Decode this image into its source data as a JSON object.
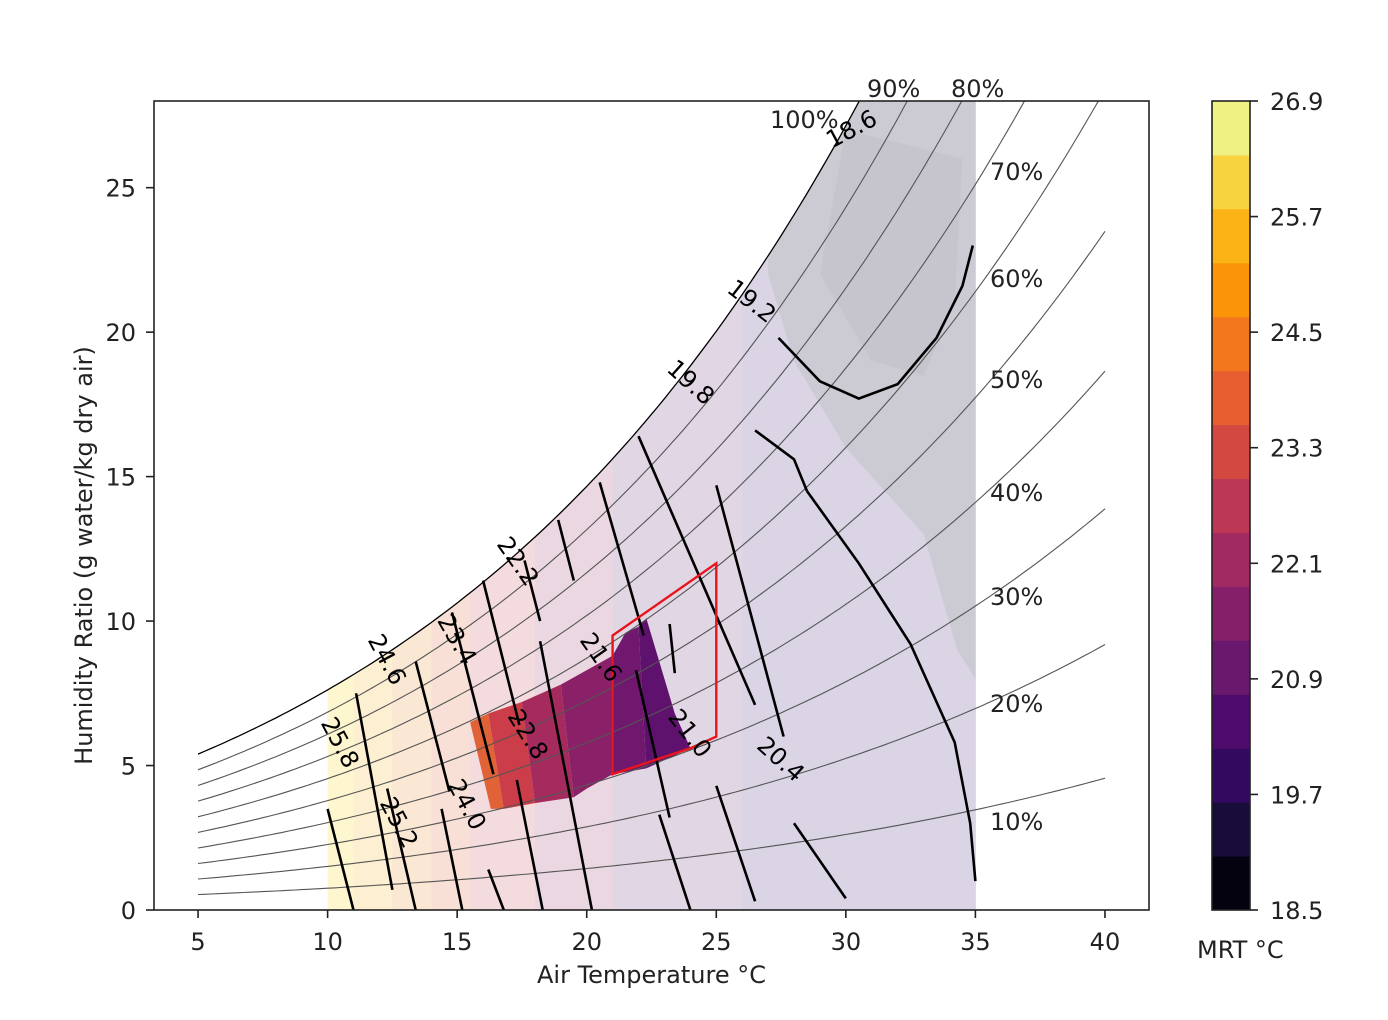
{
  "chart_data": {
    "type": "contour",
    "xlabel": "Air Temperature $^\\circ$C",
    "ylabel": "Humidity Ratio (g water/kg dry air)",
    "xlim": [
      3.3,
      41.7
    ],
    "ylim": [
      0,
      28
    ],
    "xticks": [
      5,
      10,
      15,
      20,
      25,
      30,
      35,
      40
    ],
    "yticks": [
      0,
      5,
      10,
      15,
      20,
      25
    ],
    "xlabel_text": "Air Temperature °C",
    "ylabel_text": "Humidity Ratio (g water/kg dry air)",
    "grid": false,
    "relative_humidity_curves": [
      10,
      20,
      30,
      40,
      50,
      60,
      70,
      80,
      90,
      100
    ],
    "rh_labels": [
      "10%",
      "20%",
      "30%",
      "40%",
      "50%",
      "60%",
      "70%",
      "80%",
      "90%",
      "100%"
    ],
    "contour_levels": [
      "25.8",
      "25.2",
      "24.6",
      "24.0",
      "23.4",
      "22.8",
      "22.2",
      "21.6",
      "21.0",
      "20.4",
      "19.8",
      "19.2",
      "18.6"
    ],
    "comfort_zone": {
      "color": "#e8141c",
      "points": [
        [
          21,
          4.7
        ],
        [
          24,
          5.6
        ],
        [
          25,
          6.0
        ],
        [
          25,
          12.0
        ],
        [
          21,
          9.5
        ]
      ]
    },
    "colorbar": {
      "label": "MRT °C",
      "ticks": [
        "18.5",
        "19.7",
        "20.9",
        "22.1",
        "23.3",
        "24.5",
        "25.7",
        "26.9"
      ],
      "range": [
        18.5,
        26.9
      ],
      "colors": [
        "#03020e",
        "#170c3a",
        "#32095f",
        "#4e0b6c",
        "#6a176e",
        "#851f6a",
        "#a12a63",
        "#bc3754",
        "#d44842",
        "#e75f30",
        "#f3781d",
        "#fa9409",
        "#fcb316",
        "#f7d340",
        "#f0f183"
      ]
    }
  }
}
